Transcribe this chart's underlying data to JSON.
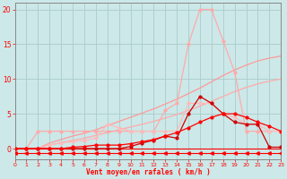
{
  "x": [
    0,
    1,
    2,
    3,
    4,
    5,
    6,
    7,
    8,
    9,
    10,
    11,
    12,
    13,
    14,
    15,
    16,
    17,
    18,
    19,
    20,
    21,
    22,
    23
  ],
  "line_diag1": [
    0,
    0,
    0,
    0.5,
    0.9,
    1.2,
    1.5,
    1.9,
    2.3,
    2.7,
    3.1,
    3.5,
    3.9,
    4.4,
    4.9,
    5.5,
    6.1,
    6.8,
    7.5,
    8.2,
    8.8,
    9.3,
    9.7,
    10.0
  ],
  "line_diag2": [
    0,
    0,
    0,
    0.8,
    1.3,
    1.8,
    2.2,
    2.7,
    3.3,
    3.9,
    4.5,
    5.1,
    5.7,
    6.4,
    7.1,
    7.9,
    8.7,
    9.6,
    10.5,
    11.3,
    12.0,
    12.6,
    13.0,
    13.3
  ],
  "line_pink_main": [
    0,
    0,
    2.5,
    2.5,
    2.5,
    2.5,
    2.5,
    2.5,
    2.5,
    2.5,
    2.5,
    2.5,
    2.5,
    5.5,
    6.5,
    15.0,
    20.0,
    20.0,
    15.5,
    11.0,
    2.5,
    2.5,
    2.5,
    2.5
  ],
  "line_pink2": [
    0,
    0,
    0,
    0.5,
    0.8,
    1.0,
    1.2,
    1.5,
    3.5,
    3.0,
    2.5,
    2.5,
    2.5,
    2.5,
    2.5,
    6.5,
    6.5,
    6.5,
    5.0,
    4.5,
    3.5,
    3.5,
    2.5,
    2.5
  ],
  "line_red1": [
    0,
    0,
    0,
    0,
    0,
    0,
    0,
    0,
    0,
    0,
    0.3,
    0.8,
    1.2,
    1.8,
    1.5,
    5.0,
    7.5,
    6.5,
    5.0,
    3.8,
    3.5,
    3.5,
    0.2,
    0.2
  ],
  "line_red2": [
    0,
    0,
    0,
    0,
    0,
    0.2,
    0.3,
    0.5,
    0.5,
    0.5,
    0.7,
    1.0,
    1.3,
    1.8,
    2.3,
    3.0,
    3.8,
    4.5,
    5.0,
    5.0,
    4.5,
    3.8,
    3.2,
    2.5
  ],
  "line_zero": [
    0,
    0,
    0,
    0,
    0,
    0,
    0,
    0,
    0,
    0,
    0,
    0,
    0,
    0,
    0,
    0,
    0,
    0,
    0,
    0,
    0,
    0,
    0,
    0
  ],
  "line_arrow": [
    -0.7,
    -0.7,
    -0.7,
    -0.7,
    -0.7,
    -0.7,
    -0.7,
    -0.7,
    -0.7,
    -0.7,
    -0.7,
    -0.7,
    -0.7,
    -0.7,
    -0.7,
    -0.7,
    -0.7,
    -0.7,
    -0.7,
    -0.7,
    -0.7,
    -0.7,
    -0.7,
    -0.7
  ],
  "bg_color": "#cce8e8",
  "grid_color": "#aacccc",
  "xlabel": "Vent moyen/en rafales ( km/h )",
  "ylim": [
    -1.5,
    21
  ],
  "xlim": [
    0,
    23
  ],
  "yticks": [
    0,
    5,
    10,
    15,
    20
  ],
  "xticks": [
    0,
    1,
    2,
    3,
    4,
    5,
    6,
    7,
    8,
    9,
    10,
    11,
    12,
    13,
    14,
    15,
    16,
    17,
    18,
    19,
    20,
    21,
    22,
    23
  ]
}
